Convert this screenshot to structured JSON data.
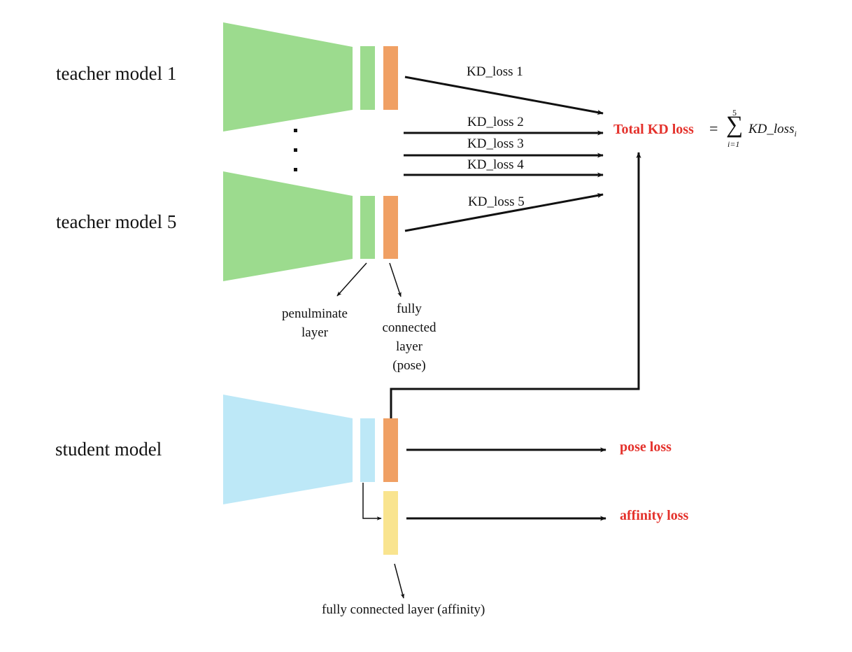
{
  "colors": {
    "teacher": "#9cdb8e",
    "student": "#bde8f7",
    "pose_layer": "#f0a064",
    "affinity_layer": "#f9e48f",
    "loss_red": "#e4312b"
  },
  "teachers": {
    "model_1": "teacher model 1",
    "model_5": "teacher model 5",
    "ellipsis": "⋮"
  },
  "student": {
    "label": "student model"
  },
  "kd_losses": [
    "KD_loss 1",
    "KD_loss 2",
    "KD_loss 3",
    "KD_loss 4",
    "KD_loss 5"
  ],
  "total": {
    "label": "Total KD loss",
    "equals": "=",
    "sum_upper": "5",
    "sum_symbol": "∑",
    "sum_lower": "i=1",
    "term": "KD_loss",
    "term_sub": "i"
  },
  "annotations": {
    "penultimate": "penulminate\nlayer",
    "fc_pose": "fully\nconnected\nlayer\n(pose)",
    "fc_affinity": "fully connected  layer (affinity)"
  },
  "losses": {
    "pose": "pose loss",
    "affinity": "affinity loss"
  }
}
